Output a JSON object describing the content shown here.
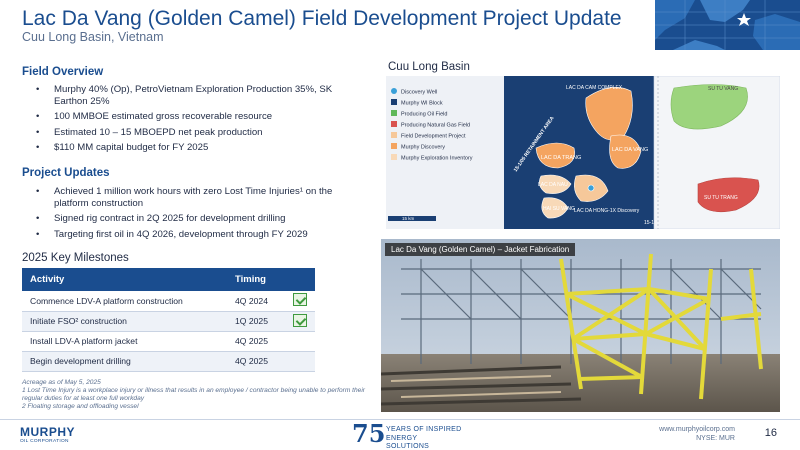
{
  "header": {
    "title": "Lac Da Vang (Golden Camel) Field Development Project Update",
    "subtitle": "Cuu Long Basin, Vietnam"
  },
  "field_overview": {
    "heading": "Field Overview",
    "bullets": [
      "Murphy 40% (Op), PetroVietnam Exploration Production 35%, SK Earthon 25%",
      "100 MMBOE estimated gross recoverable resource",
      "Estimated 10 – 15 MBOEPD net peak production",
      "$110 MM capital budget for FY 2025"
    ]
  },
  "project_updates": {
    "heading": "Project Updates",
    "bullets": [
      "Achieved 1 million work hours with zero Lost Time Injuries¹ on the platform construction",
      "Signed rig contract in 2Q 2025 for development drilling",
      "Targeting first oil in 4Q 2026, development through FY 2029"
    ]
  },
  "milestones": {
    "heading": "2025 Key Milestones",
    "col_activity": "Activity",
    "col_timing": "Timing",
    "rows": [
      {
        "activity": "Commence LDV-A platform construction",
        "timing": "4Q 2024",
        "done": true
      },
      {
        "activity": "Initiate FSO² construction",
        "timing": "1Q 2025",
        "done": true
      },
      {
        "activity": "Install LDV-A platform jacket",
        "timing": "4Q 2025",
        "done": false
      },
      {
        "activity": "Begin development drilling",
        "timing": "4Q 2025",
        "done": false
      }
    ]
  },
  "footnotes": [
    "Acreage as of May 5, 2025",
    "1 Lost Time Injury is a workplace injury or illness that results in an employee / contractor being unable to perform their regular duties for at least one full workday",
    "2 Floating storage and offloading vessel"
  ],
  "map": {
    "title": "Cuu Long Basin",
    "legend": [
      {
        "label": "Discovery Well",
        "color": "#3aa0d8",
        "shape": "dot"
      },
      {
        "label": "Murphy WI Block",
        "color": "#1a3f73",
        "shape": "square"
      },
      {
        "label": "Producing Oil Field",
        "color": "#5fb85a",
        "shape": "square"
      },
      {
        "label": "Producing Natural Gas Field",
        "color": "#d9534f",
        "shape": "square"
      },
      {
        "label": "Field Development Project",
        "color": "#f6c89a",
        "shape": "square"
      },
      {
        "label": "Murphy Discovery",
        "color": "#f4a460",
        "shape": "square"
      },
      {
        "label": "Murphy Exploration Inventory",
        "color": "#f8d9b8",
        "shape": "square"
      }
    ],
    "labels": {
      "cam": "LAC DA CAM COMPLEX",
      "trang": "LAC DA TRANG",
      "vang": "LAC DA VANG",
      "nau": "LAC DA NAU",
      "haisu": "HAI SU VANG",
      "hong": "LAC DA HONG-1X Discovery",
      "sutuvang": "SU TU VANG",
      "sututrang": "SU TU TRANG",
      "retainment": "15-1/05 RETAINMENT AREA",
      "block": "15-1",
      "scale": "15 km"
    }
  },
  "photo": {
    "caption": "Lac Da Vang (Golden Camel) – Jacket Fabrication"
  },
  "footer": {
    "logo_word": "MURPHY",
    "logo_sub": "OIL CORPORATION",
    "anniv_number": "75",
    "anniv_line1": "YEARS OF INSPIRED",
    "anniv_line2": "ENERGY SOLUTIONS",
    "website": "www.murphyoilcorp.com",
    "ticker": "NYSE: MUR",
    "page": "16"
  }
}
